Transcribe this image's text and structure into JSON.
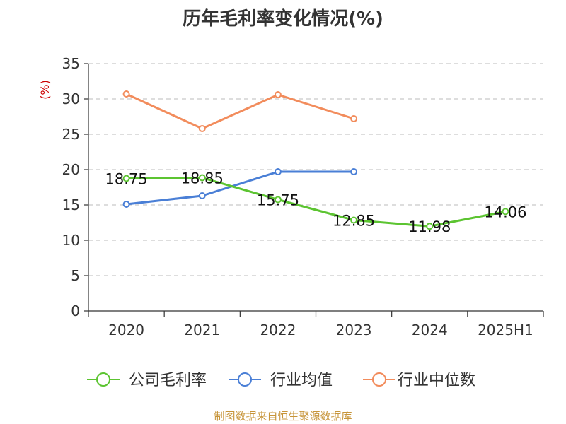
{
  "title": "历年毛利率变化情况(%)",
  "footer": "制图数据来自恒生聚源数据库",
  "chart_data": {
    "type": "line",
    "title": "历年毛利率变化情况(%)",
    "ylabel": "(%)",
    "xlabel": "",
    "categories": [
      "2020",
      "2021",
      "2022",
      "2023",
      "2024",
      "2025H1"
    ],
    "ylim": [
      0,
      35
    ],
    "yticks": [
      0,
      5,
      10,
      15,
      20,
      25,
      30,
      35
    ],
    "grid": true,
    "legend_position": "bottom",
    "series": [
      {
        "name": "公司毛利率",
        "color": "#5cc431",
        "values": [
          18.75,
          18.85,
          15.75,
          12.85,
          11.98,
          14.06
        ],
        "labels": [
          "18.75",
          "18.85",
          "15.75",
          "12.85",
          "11.98",
          "14.06"
        ]
      },
      {
        "name": "行业均值",
        "color": "#4a7fd6",
        "values": [
          15.1,
          16.3,
          19.7,
          19.7,
          null,
          null
        ]
      },
      {
        "name": "行业中位数",
        "color": "#f28c5c",
        "values": [
          30.7,
          25.8,
          30.6,
          27.2,
          null,
          null
        ]
      }
    ]
  },
  "colors": {
    "axis": "#333333",
    "grid": "#bbbbbb",
    "ylabel": "#cc0000",
    "footer": "#c7953a"
  }
}
